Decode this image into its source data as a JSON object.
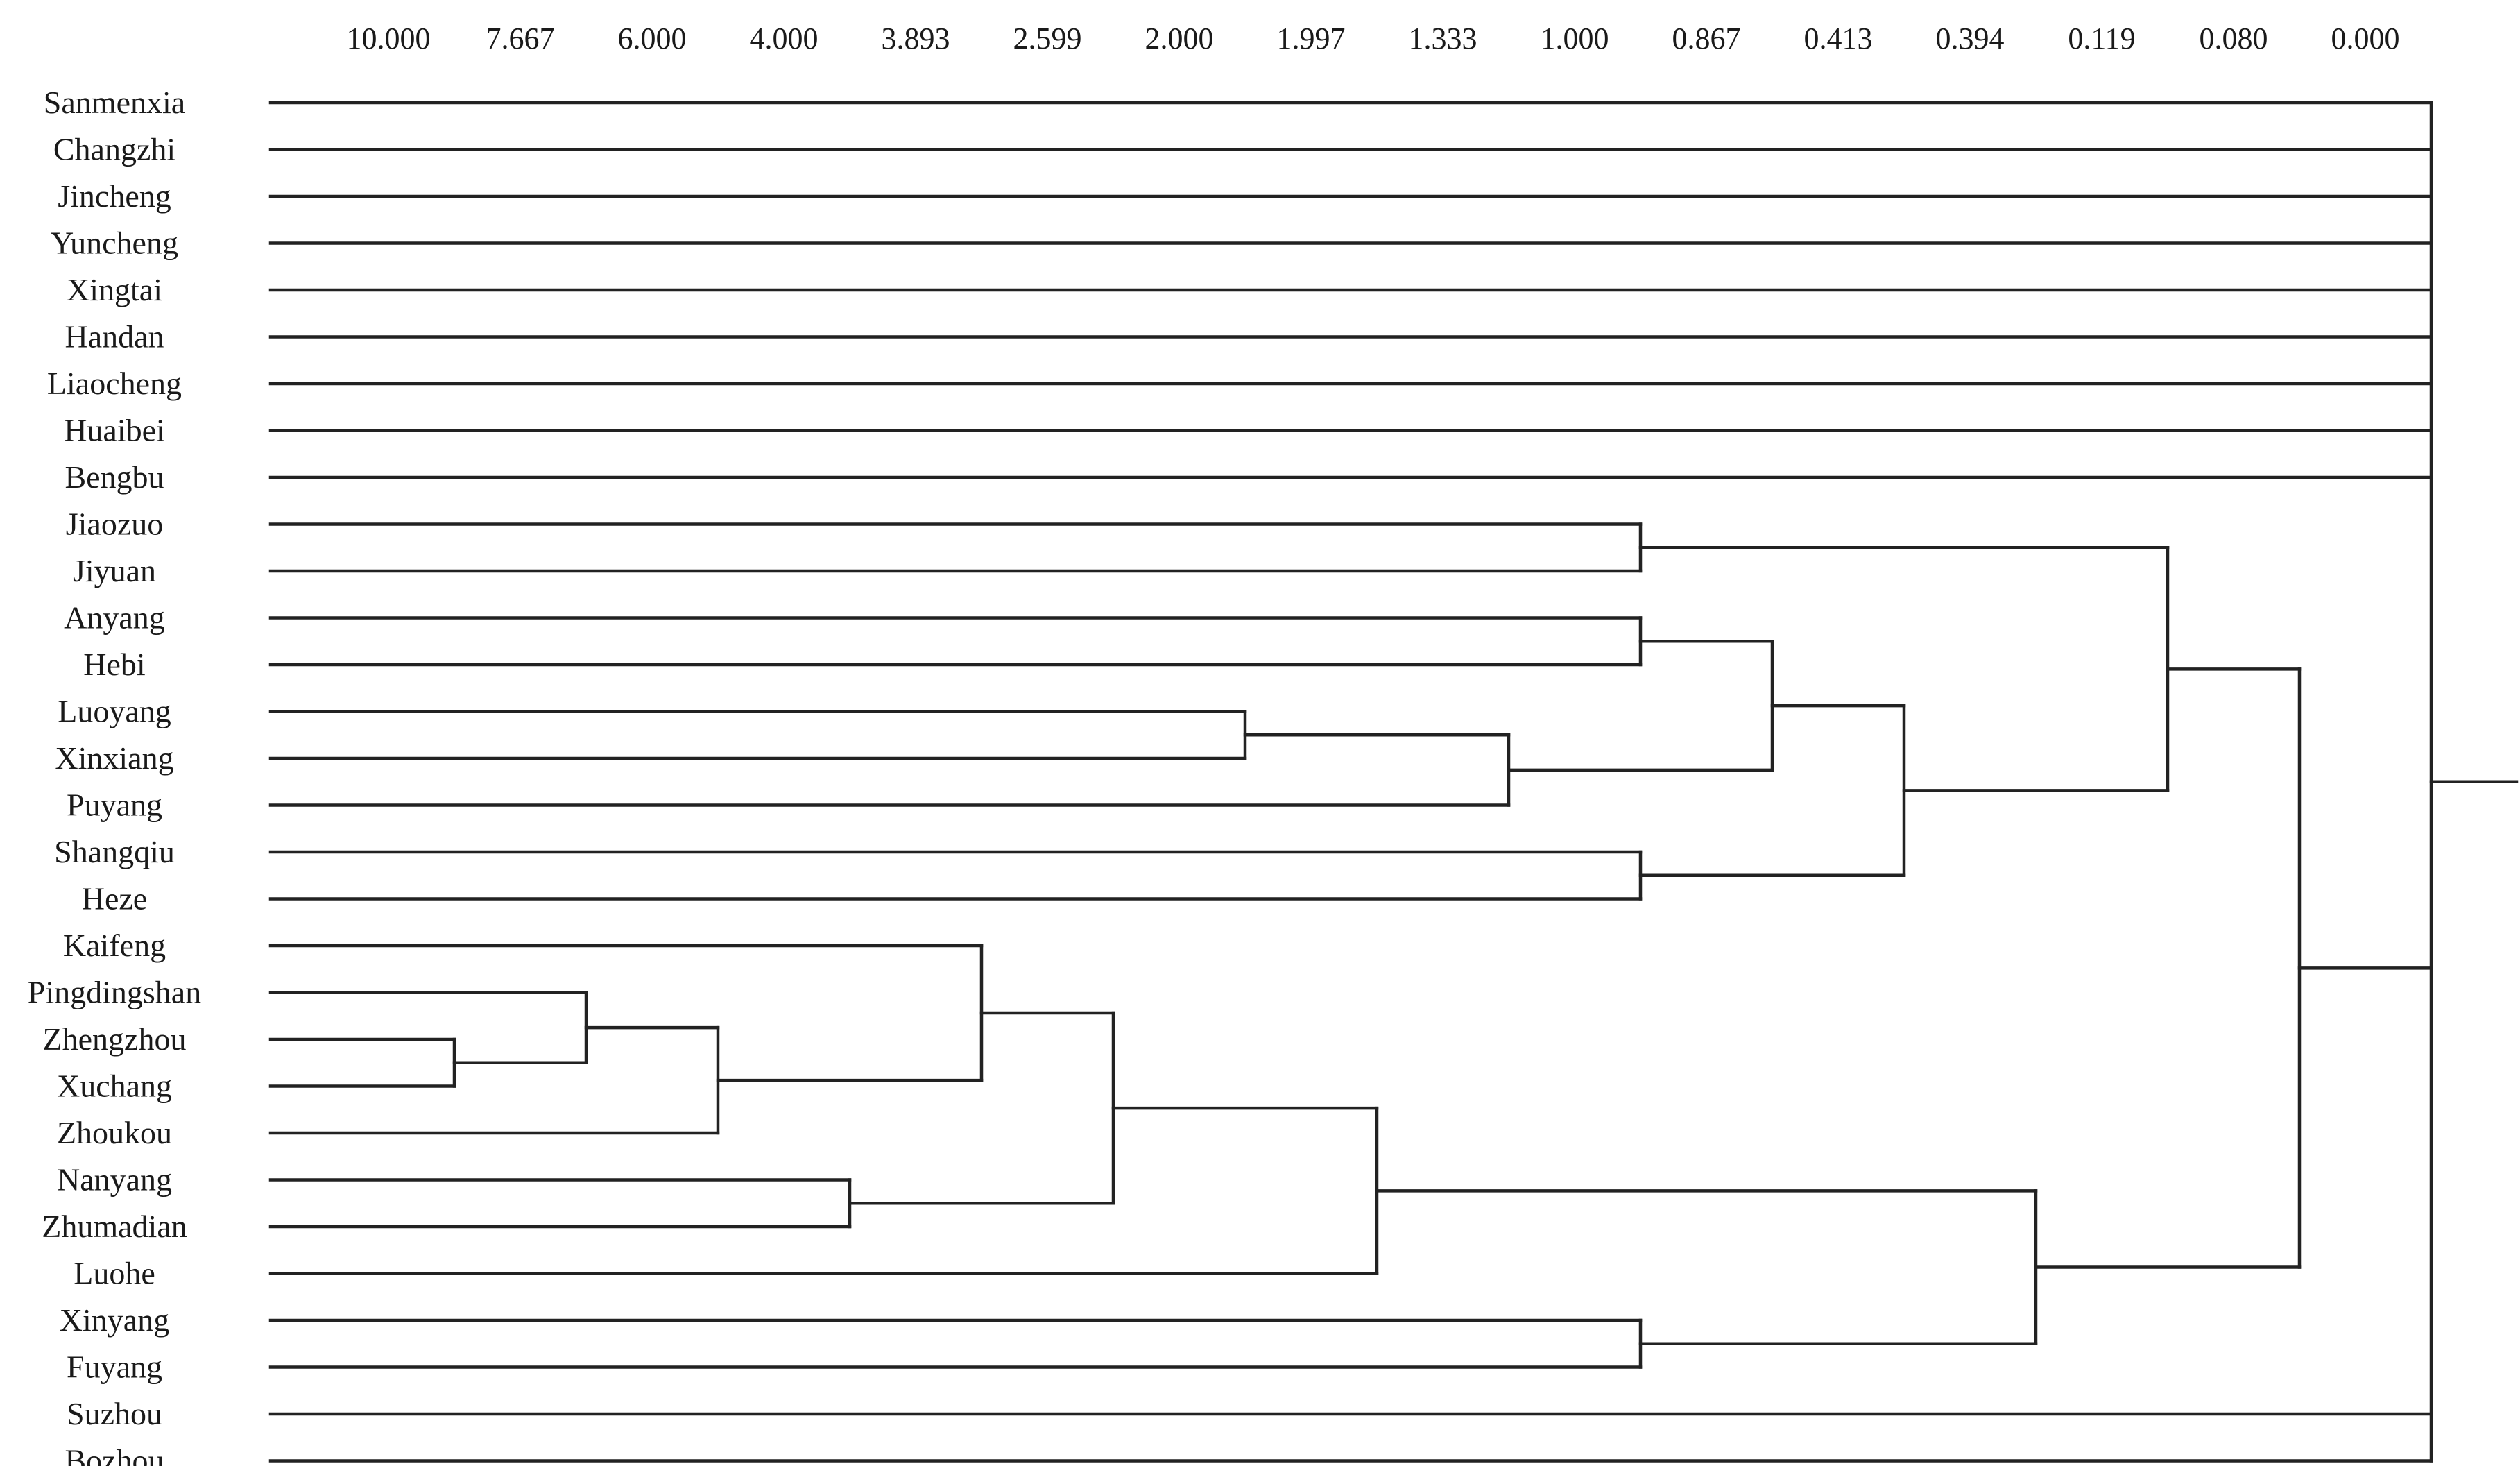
{
  "chart_data": {
    "type": "dendrogram",
    "title": "",
    "axis_ticks": [
      "10.000",
      "7.667",
      "6.000",
      "4.000",
      "3.893",
      "2.599",
      "2.000",
      "1.997",
      "1.333",
      "1.000",
      "0.867",
      "0.413",
      "0.394",
      "0.119",
      "0.080",
      "0.000"
    ],
    "leaves": [
      "Sanmenxia",
      "Changzhi",
      "Jincheng",
      "Yuncheng",
      "Xingtai",
      "Handan",
      "Liaocheng",
      "Huaibei",
      "Bengbu",
      "Jiaozuo",
      "Jiyuan",
      "Anyang",
      "Hebi",
      "Luoyang",
      "Xinxiang",
      "Puyang",
      "Shangqiu",
      "Heze",
      "Kaifeng",
      "Pingdingshan",
      "Zhengzhou",
      "Xuchang",
      "Zhoukou",
      "Nanyang",
      "Zhumadian",
      "Luohe",
      "Xinyang",
      "Fuyang",
      "Suzhou",
      "Bozhou"
    ],
    "merges": [
      {
        "id": "m1",
        "children": [
          "Zhengzhou",
          "Xuchang"
        ],
        "at_tick": 0.5
      },
      {
        "id": "m2",
        "children": [
          "Pingdingshan",
          "m1"
        ],
        "at_tick": 1.5
      },
      {
        "id": "m3",
        "children": [
          "m2",
          "Zhoukou"
        ],
        "at_tick": 2.5
      },
      {
        "id": "m4",
        "children": [
          "Nanyang",
          "Zhumadian"
        ],
        "at_tick": 3.5
      },
      {
        "id": "m5",
        "children": [
          "Kaifeng",
          "m3"
        ],
        "at_tick": 4.5
      },
      {
        "id": "m6",
        "children": [
          "m5",
          "m4"
        ],
        "at_tick": 5.5
      },
      {
        "id": "m7",
        "children": [
          "Luoyang",
          "Xinxiang"
        ],
        "at_tick": 6.5
      },
      {
        "id": "m8",
        "children": [
          "m6",
          "Luohe"
        ],
        "at_tick": 7.5
      },
      {
        "id": "m9",
        "children": [
          "m7",
          "Puyang"
        ],
        "at_tick": 8.5
      },
      {
        "id": "m10",
        "children": [
          "Jiaozuo",
          "Jiyuan"
        ],
        "at_tick": 9.5
      },
      {
        "id": "m11",
        "children": [
          "Anyang",
          "Hebi"
        ],
        "at_tick": 9.5
      },
      {
        "id": "m12",
        "children": [
          "Shangqiu",
          "Heze"
        ],
        "at_tick": 9.5
      },
      {
        "id": "m13",
        "children": [
          "Xinyang",
          "Fuyang"
        ],
        "at_tick": 9.5
      },
      {
        "id": "m14",
        "children": [
          "m11",
          "m9"
        ],
        "at_tick": 10.5
      },
      {
        "id": "m15",
        "children": [
          "m14",
          "m12"
        ],
        "at_tick": 11.5
      },
      {
        "id": "m16",
        "children": [
          "m8",
          "m13"
        ],
        "at_tick": 12.5
      },
      {
        "id": "m17",
        "children": [
          "m10",
          "m15"
        ],
        "at_tick": 13.5
      },
      {
        "id": "m18",
        "children": [
          "m17",
          "m16"
        ],
        "at_tick": 14.5
      },
      {
        "id": "root",
        "children": [
          "Sanmenxia",
          "Changzhi",
          "Jincheng",
          "Yuncheng",
          "Xingtai",
          "Handan",
          "Liaocheng",
          "Huaibei",
          "Bengbu",
          "m18",
          "Suzhou",
          "Bozhou"
        ],
        "at_tick": 15.5
      }
    ]
  }
}
